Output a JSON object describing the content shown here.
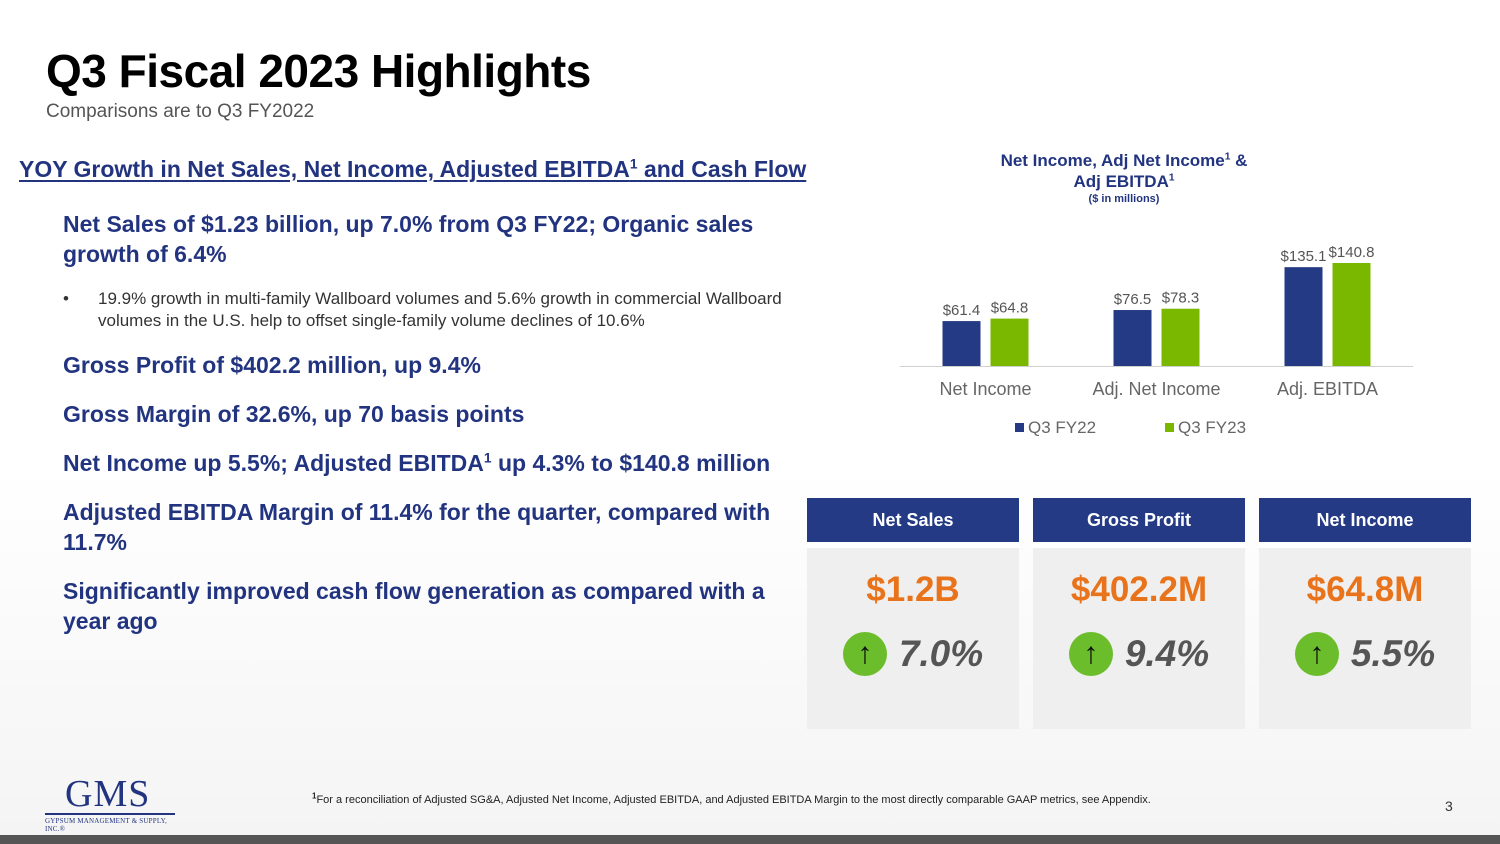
{
  "slide": {
    "title": "Q3 Fiscal 2023 Highlights",
    "subtitle": "Comparisons are to Q3 FY2022",
    "page_number": "3"
  },
  "highlights": {
    "heading": "YOY Growth in Net Sales, Net Income, Adjusted EBITDA",
    "heading_sup": "1",
    "heading_tail": " and Cash Flow",
    "net_sales": "Net Sales of $1.23 billion, up 7.0% from Q3 FY22;  Organic sales growth of 6.4%",
    "net_sales_detail": "19.9% growth in multi-family Wallboard volumes and 5.6% growth in commercial Wallboard volumes in the U.S. help to offset single-family volume declines of 10.6%",
    "gross_profit": "Gross Profit of $402.2 million, up 9.4%",
    "gross_margin": "Gross Margin of 32.6%, up 70 basis points",
    "net_income_pre": "Net Income up 5.5%; Adjusted EBITDA",
    "net_income_sup": "1",
    "net_income_post": " up 4.3% to $140.8 million",
    "ebitda_margin": "Adjusted EBITDA Margin of 11.4% for the quarter, compared with 11.7%",
    "cash_flow": "Significantly improved cash flow generation as compared with a year ago"
  },
  "chart_data": {
    "type": "bar",
    "title_line1": "Net Income, Adj Net Income",
    "title_line1_sup": "1",
    "title_line1_tail": " &",
    "title_line2": "Adj EBITDA",
    "title_line2_sup": "1",
    "units": "($ in millions)",
    "categories": [
      "Net Income",
      "Adj. Net Income",
      "Adj. EBITDA"
    ],
    "series": [
      {
        "name": "Q3 FY22",
        "color": "#243a84",
        "values": [
          61.4,
          76.5,
          135.1
        ],
        "labels": [
          "$61.4",
          "$76.5",
          "$135.1"
        ]
      },
      {
        "name": "Q3 FY23",
        "color": "#7ab800",
        "values": [
          64.8,
          78.3,
          140.8
        ],
        "labels": [
          "$64.8",
          "$78.3",
          "$140.8"
        ]
      }
    ],
    "legend_position": "bottom",
    "grid": false
  },
  "cards": [
    {
      "label": "Net Sales",
      "value": "$1.2B",
      "change": "7.0%",
      "arrow": "↑"
    },
    {
      "label": "Gross Profit",
      "value": "$402.2M",
      "change": "9.4%",
      "arrow": "↑"
    },
    {
      "label": "Net Income",
      "value": "$64.8M",
      "change": "5.5%",
      "arrow": "↑"
    }
  ],
  "colors": {
    "navy": "#223480",
    "card_header": "#243a84",
    "orange": "#e8731a",
    "green": "#6bbd2c"
  },
  "logo": {
    "mark": "GMS",
    "tagline": "GYPSUM MANAGEMENT & SUPPLY, INC.",
    "registered": "®"
  },
  "footnote": {
    "sup": "1",
    "text": "For a reconciliation of Adjusted SG&A, Adjusted Net Income, Adjusted EBITDA, and Adjusted EBITDA Margin to the most directly comparable GAAP metrics, see Appendix."
  }
}
